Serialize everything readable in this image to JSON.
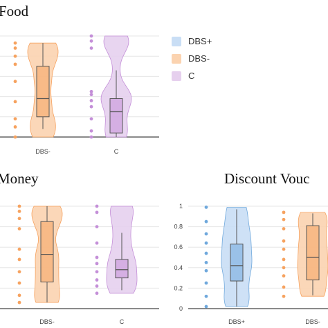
{
  "colors": {
    "DBS+": "#6fa8dc",
    "DBS-": "#f6a25f",
    "C": "#c48fd8",
    "box_line": "#555555",
    "grid": "#e6e6e6",
    "axis": "#444444"
  },
  "legend": [
    {
      "label": "DBS+"
    },
    {
      "label": "DBS-"
    },
    {
      "label": "C"
    }
  ],
  "chart_data": [
    {
      "type": "violin",
      "title": "Food",
      "categories": [
        "DBS-",
        "C"
      ],
      "ylim": [
        0,
        1
      ],
      "grid": true,
      "series": [
        {
          "category": "DBS-",
          "points": [
            0.0,
            0.1,
            0.18,
            0.35,
            0.55,
            0.72,
            0.8,
            0.88,
            0.93
          ],
          "box": {
            "min": 0.08,
            "q1": 0.2,
            "median": 0.38,
            "q3": 0.7,
            "max": 0.93
          }
        },
        {
          "category": "C",
          "points": [
            0.0,
            0.06,
            0.18,
            0.3,
            0.36,
            0.42,
            0.45,
            0.88,
            0.95,
            1.0
          ],
          "box": {
            "min": 0.0,
            "q1": 0.04,
            "median": 0.25,
            "q3": 0.38,
            "max": 0.66
          }
        }
      ]
    },
    {
      "type": "violin",
      "title": "Money",
      "categories": [
        "DBS-",
        "C"
      ],
      "ylim": [
        0,
        1
      ],
      "grid": true,
      "series": [
        {
          "category": "DBS-",
          "points": [
            0.06,
            0.13,
            0.25,
            0.36,
            0.48,
            0.58,
            0.78,
            0.88,
            0.95,
            1.0
          ],
          "box": {
            "min": 0.06,
            "q1": 0.26,
            "median": 0.53,
            "q3": 0.85,
            "max": 1.0
          }
        },
        {
          "category": "C",
          "points": [
            0.15,
            0.22,
            0.28,
            0.36,
            0.44,
            0.5,
            0.64,
            0.8,
            0.94,
            1.0
          ],
          "box": {
            "min": 0.18,
            "q1": 0.3,
            "median": 0.38,
            "q3": 0.48,
            "max": 0.74
          }
        }
      ]
    },
    {
      "type": "violin",
      "title": "Discount Vouc",
      "categories": [
        "DBS+",
        "DBS-"
      ],
      "ylim": [
        0,
        1
      ],
      "yticks": [
        "0",
        "0.2",
        "0.4",
        "0.6",
        "0.8",
        "1"
      ],
      "grid": true,
      "series": [
        {
          "category": "DBS+",
          "points": [
            0.02,
            0.12,
            0.25,
            0.37,
            0.45,
            0.54,
            0.64,
            0.73,
            0.85,
            0.99
          ],
          "box": {
            "min": 0.02,
            "q1": 0.27,
            "median": 0.42,
            "q3": 0.63,
            "max": 0.97
          }
        },
        {
          "category": "DBS-",
          "points": [
            0.12,
            0.21,
            0.32,
            0.4,
            0.48,
            0.58,
            0.66,
            0.78,
            0.87,
            0.94
          ],
          "box": {
            "min": 0.13,
            "q1": 0.28,
            "median": 0.5,
            "q3": 0.81,
            "max": 0.93
          }
        }
      ]
    }
  ]
}
